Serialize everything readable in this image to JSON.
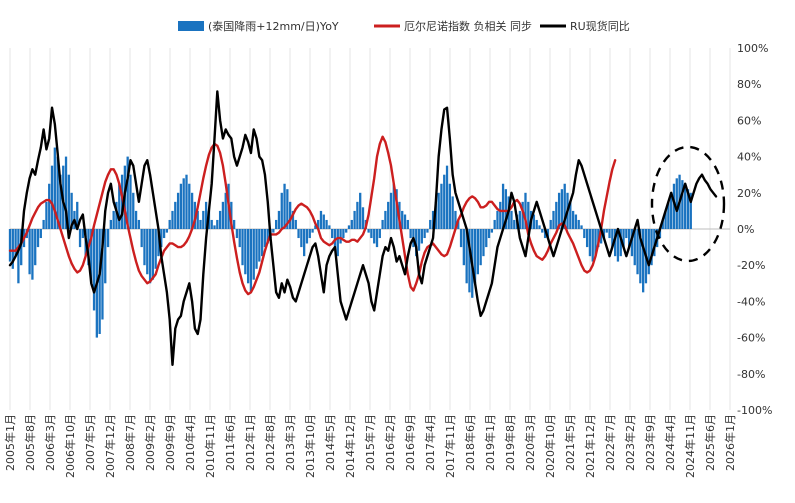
{
  "chart_data": {
    "type": "bar",
    "legend": {
      "placement": "top-center",
      "items": [
        {
          "label": "(泰国降雨+12mm/日)YoY",
          "kind": "bar",
          "color": "#1a73c0"
        },
        {
          "label": "厄尔尼诺指数 负相关 同步",
          "kind": "line",
          "color": "#cc1f1f"
        },
        {
          "label": "RU现货同比",
          "kind": "line",
          "color": "#000000"
        }
      ]
    },
    "y_right": {
      "ticks": [
        100,
        80,
        60,
        40,
        20,
        0,
        -20,
        -40,
        -60,
        -80,
        -100
      ],
      "tick_labels": [
        "100%",
        "80%",
        "60%",
        "40%",
        "20%",
        "0%",
        "-20%",
        "-40%",
        "-60%",
        "-80%",
        "-100%"
      ],
      "range": [
        -100,
        100
      ]
    },
    "x": {
      "range": [
        "2005-01",
        "2026-06"
      ],
      "tick_labels": [
        "2005年1月",
        "2005年8月",
        "2006年3月",
        "2006年10月",
        "2007年5月",
        "2007年12月",
        "2008年7月",
        "2009年2月",
        "2009年9月",
        "2010年4月",
        "2010年11月",
        "2011年6月",
        "2012年1月",
        "2012年8月",
        "2013年3月",
        "2013年10月",
        "2014年5月",
        "2014年12月",
        "2015年7月",
        "2016年2月",
        "2016年9月",
        "2017年4月",
        "2017年11月",
        "2018年6月",
        "2019年1月",
        "2019年8月",
        "2020年3月",
        "2020年10月",
        "2021年5月",
        "2021年12月",
        "2022年7月",
        "2023年2月",
        "2023年9月",
        "2024年4月",
        "2024年11月",
        "2025年6月",
        "2026年1月"
      ]
    },
    "grid": {
      "vertical": true,
      "horizontal": false
    },
    "annotation": {
      "shape": "dashed-ellipse",
      "around": "2024-2025 period",
      "color": "#000000"
    },
    "series": [
      {
        "name": "(泰国降雨+12mm/日)YoY",
        "type": "bar",
        "color": "#1a73c0",
        "start": "2005-01",
        "step_months": 1,
        "values": [
          -18,
          -22,
          -15,
          -30,
          -20,
          -10,
          -5,
          -25,
          -28,
          -20,
          -10,
          -5,
          5,
          15,
          25,
          35,
          45,
          40,
          30,
          35,
          40,
          30,
          20,
          10,
          15,
          -10,
          -5,
          -15,
          -20,
          -30,
          -45,
          -60,
          -58,
          -50,
          -30,
          -10,
          5,
          10,
          15,
          25,
          30,
          35,
          40,
          30,
          20,
          10,
          5,
          -10,
          -20,
          -25,
          -30,
          -28,
          -22,
          -15,
          -10,
          -5,
          -2,
          5,
          10,
          15,
          20,
          25,
          28,
          30,
          25,
          20,
          15,
          10,
          5,
          10,
          15,
          10,
          5,
          2,
          5,
          10,
          15,
          20,
          25,
          15,
          5,
          -5,
          -10,
          -20,
          -25,
          -30,
          -35,
          -28,
          -22,
          -18,
          -15,
          -10,
          -8,
          -5,
          -2,
          5,
          10,
          20,
          25,
          22,
          15,
          10,
          5,
          -5,
          -10,
          -15,
          -8,
          -5,
          -2,
          2,
          5,
          10,
          8,
          5,
          2,
          -5,
          -10,
          -15,
          -8,
          -5,
          -2,
          2,
          5,
          10,
          15,
          20,
          12,
          5,
          -2,
          -5,
          -8,
          -10,
          -5,
          5,
          10,
          15,
          20,
          25,
          22,
          15,
          10,
          8,
          5,
          -5,
          -10,
          -15,
          -12,
          -8,
          -5,
          -2,
          5,
          10,
          15,
          20,
          25,
          30,
          35,
          25,
          18,
          10,
          5,
          -10,
          -20,
          -30,
          -35,
          -38,
          -30,
          -25,
          -20,
          -15,
          -10,
          -5,
          -2,
          5,
          10,
          15,
          25,
          22,
          18,
          10,
          5,
          8,
          10,
          15,
          20,
          15,
          10,
          8,
          5,
          2,
          -2,
          -5,
          -5,
          5,
          10,
          15,
          20,
          22,
          25,
          20,
          15,
          10,
          8,
          5,
          2,
          -5,
          -10,
          -15,
          -18,
          -15,
          -10,
          -8,
          -5,
          -2,
          -5,
          -10,
          -15,
          -18,
          -15,
          -10,
          -5,
          -10,
          -15,
          -20,
          -25,
          -30,
          -35,
          -30,
          -25,
          -20,
          -15,
          -10,
          -5,
          5,
          10,
          15,
          20,
          25,
          28,
          30,
          27,
          25,
          22,
          20
        ]
      },
      {
        "name": "厄尔尼诺指数 负相关 同步",
        "type": "line",
        "color": "#cc1f1f",
        "start": "2005-01",
        "step_months": 1,
        "values": [
          -12,
          -12,
          -12,
          -10,
          -8,
          -5,
          -2,
          2,
          6,
          9,
          12,
          14,
          15,
          16,
          16,
          14,
          10,
          5,
          0,
          -5,
          -10,
          -15,
          -19,
          -22,
          -24,
          -23,
          -20,
          -15,
          -10,
          -5,
          2,
          8,
          14,
          20,
          26,
          30,
          33,
          33,
          30,
          25,
          18,
          10,
          2,
          -5,
          -12,
          -18,
          -23,
          -26,
          -28,
          -30,
          -29,
          -27,
          -25,
          -20,
          -16,
          -12,
          -10,
          -8,
          -8,
          -9,
          -10,
          -10,
          -9,
          -7,
          -4,
          0,
          5,
          12,
          20,
          28,
          35,
          41,
          45,
          47,
          46,
          42,
          35,
          25,
          14,
          3,
          -7,
          -16,
          -24,
          -30,
          -34,
          -36,
          -35,
          -32,
          -28,
          -24,
          -18,
          -12,
          -7,
          -3,
          -3,
          -3,
          -2,
          0,
          1,
          3,
          5,
          8,
          11,
          13,
          14,
          13,
          12,
          10,
          7,
          3,
          0,
          -5,
          -7,
          -8,
          -9,
          -8,
          -6,
          -5,
          -5,
          -6,
          -7,
          -7,
          -6,
          -6,
          -7,
          -5,
          -3,
          1,
          8,
          18,
          28,
          40,
          47,
          51,
          48,
          42,
          35,
          25,
          15,
          5,
          -5,
          -15,
          -25,
          -32,
          -34,
          -30,
          -25,
          -18,
          -13,
          -10,
          -9,
          -8,
          -10,
          -12,
          -14,
          -15,
          -14,
          -10,
          -5,
          0,
          5,
          8,
          12,
          15,
          17,
          18,
          17,
          15,
          12,
          12,
          13,
          15,
          15,
          13,
          11,
          10,
          10,
          10,
          10,
          12,
          15,
          16,
          14,
          10,
          5,
          -3,
          -8,
          -12,
          -15,
          -16,
          -17,
          -15,
          -12,
          -8,
          -5,
          -2,
          2,
          3,
          2,
          -2,
          -5,
          -8,
          -12,
          -16,
          -20,
          -23,
          -24,
          -23,
          -20,
          -15,
          -8,
          0,
          10,
          18,
          26,
          33,
          38
        ]
      },
      {
        "name": "RU现货同比",
        "type": "line",
        "color": "#000000",
        "start": "2005-01",
        "step_months": 1,
        "values": [
          -20,
          -18,
          -15,
          -12,
          -8,
          10,
          20,
          28,
          33,
          30,
          38,
          45,
          55,
          44,
          50,
          67,
          58,
          42,
          25,
          15,
          10,
          -5,
          2,
          5,
          0,
          5,
          8,
          -5,
          -15,
          -30,
          -35,
          -30,
          -25,
          -10,
          10,
          20,
          25,
          15,
          10,
          5,
          8,
          20,
          28,
          38,
          35,
          25,
          15,
          25,
          35,
          38,
          30,
          20,
          10,
          0,
          -15,
          -25,
          -35,
          -50,
          -75,
          -55,
          -50,
          -48,
          -40,
          -35,
          -30,
          -40,
          -55,
          -58,
          -50,
          -25,
          -5,
          10,
          25,
          50,
          76,
          60,
          50,
          55,
          52,
          50,
          40,
          35,
          40,
          45,
          52,
          48,
          42,
          55,
          50,
          40,
          38,
          30,
          15,
          -5,
          -20,
          -35,
          -38,
          -30,
          -35,
          -28,
          -32,
          -38,
          -40,
          -35,
          -30,
          -25,
          -20,
          -15,
          -10,
          -8,
          -15,
          -25,
          -35,
          -20,
          -15,
          -12,
          -10,
          -25,
          -40,
          -45,
          -50,
          -45,
          -40,
          -35,
          -30,
          -25,
          -20,
          -25,
          -30,
          -40,
          -45,
          -35,
          -25,
          -15,
          -10,
          -12,
          -5,
          -10,
          -18,
          -15,
          -20,
          -25,
          -15,
          -8,
          -5,
          -10,
          -25,
          -30,
          -20,
          -15,
          -10,
          -5,
          15,
          40,
          55,
          66,
          67,
          50,
          30,
          20,
          15,
          10,
          5,
          0,
          -10,
          -20,
          -30,
          -40,
          -48,
          -45,
          -40,
          -35,
          -30,
          -20,
          -10,
          -5,
          0,
          5,
          10,
          20,
          15,
          5,
          -5,
          -10,
          -15,
          -5,
          5,
          10,
          15,
          10,
          5,
          0,
          -5,
          -10,
          -15,
          -10,
          -5,
          0,
          5,
          10,
          15,
          20,
          30,
          38,
          35,
          30,
          25,
          20,
          15,
          10,
          5,
          0,
          -5,
          -10,
          -15,
          -10,
          -5,
          0,
          -5,
          -10,
          -15,
          -10,
          -5,
          0,
          5,
          -5,
          -10,
          -15,
          -20,
          -15,
          -10,
          -5,
          0,
          5,
          10,
          15,
          20,
          15,
          10,
          15,
          20,
          25,
          20,
          15,
          20,
          25,
          28,
          30,
          27,
          25,
          22,
          20,
          18
        ]
      }
    ]
  }
}
